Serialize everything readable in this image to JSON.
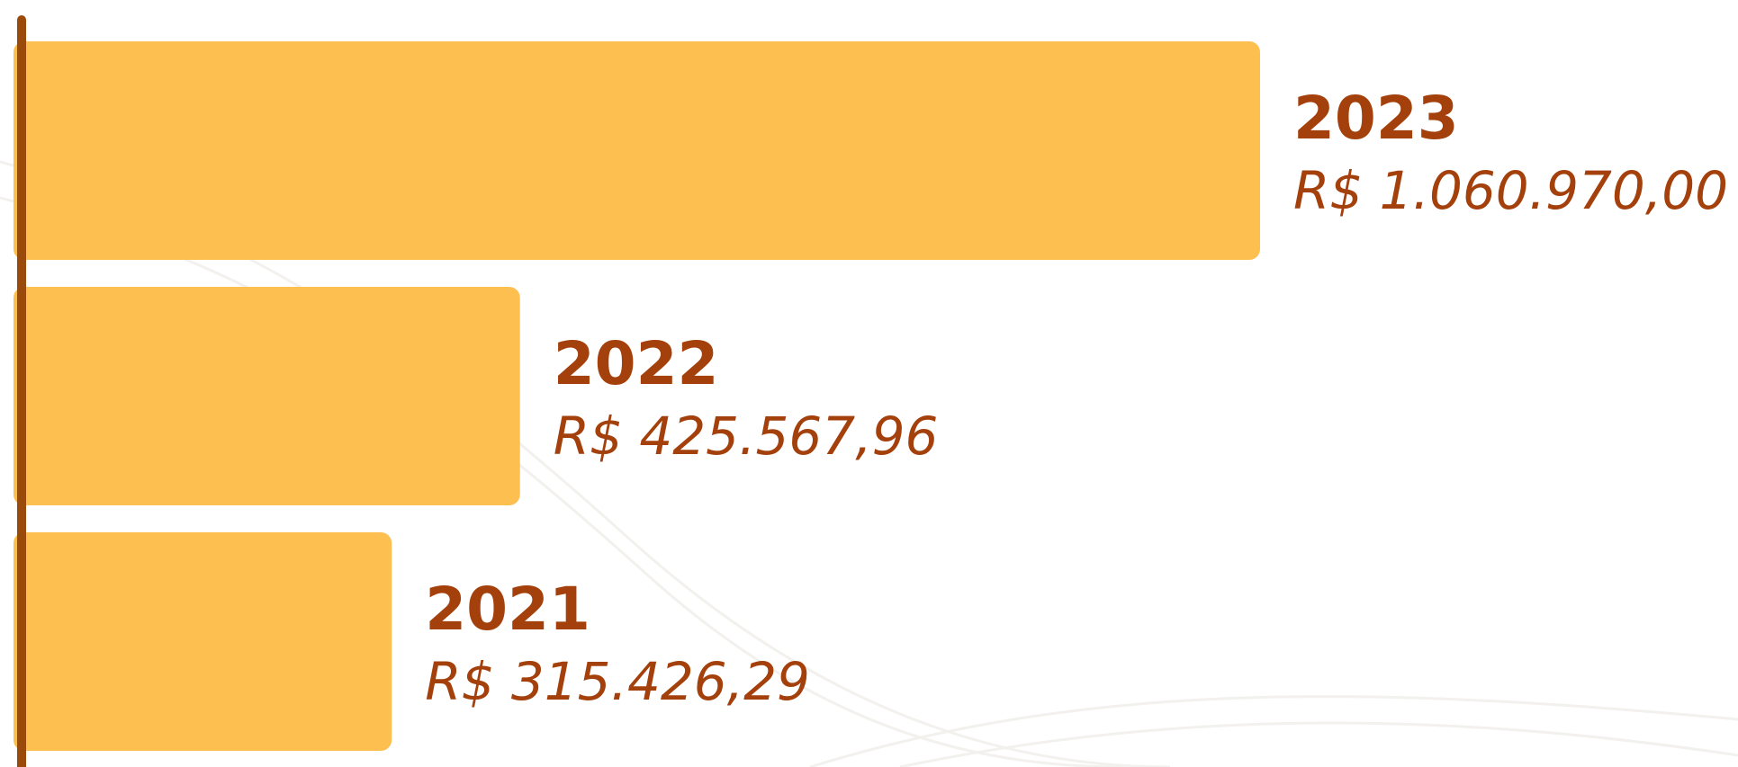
{
  "chart_data": {
    "type": "bar",
    "orientation": "horizontal",
    "categories": [
      "2023",
      "2022",
      "2021"
    ],
    "values": [
      1060970.0,
      425567.96,
      315426.29
    ],
    "value_labels": [
      "R$ 1.060.970,00",
      "R$ 425.567,96",
      "R$ 315.426,29"
    ],
    "color": "#fdbf50"
  }
}
